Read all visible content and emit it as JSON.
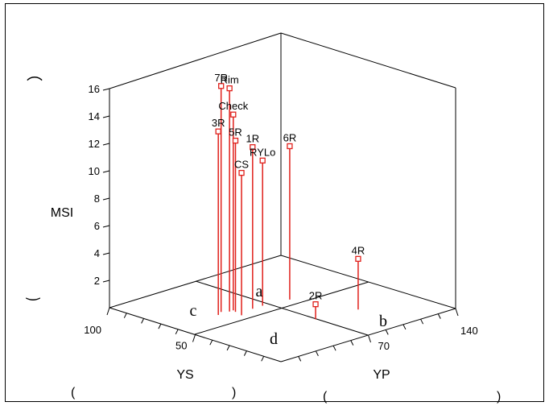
{
  "chart_data": {
    "type": "scatter",
    "subtype": "3d-scatter-with-drop-lines",
    "xlabel": "YP",
    "ylabel": "YS",
    "zlabel": "MSI",
    "x_axis": {
      "ticks": [
        "70",
        "140"
      ],
      "values": [
        70,
        140
      ],
      "range": [
        0,
        140
      ]
    },
    "y_axis": {
      "ticks": [
        "50",
        "100"
      ],
      "values": [
        50,
        100
      ],
      "range": [
        0,
        100
      ]
    },
    "z_axis": {
      "ticks": [
        "2",
        "4",
        "6",
        "8",
        "10",
        "12",
        "14",
        "16"
      ],
      "values": [
        2,
        4,
        6,
        8,
        10,
        12,
        14,
        16
      ],
      "range": [
        0,
        16
      ]
    },
    "series_color": "#e0201b",
    "points": [
      {
        "label": "7R",
        "yp": 40,
        "ys": 64,
        "msi": 16.5
      },
      {
        "label": "Rim",
        "yp": 44,
        "ys": 62,
        "msi": 16.3
      },
      {
        "label": "Check",
        "yp": 47,
        "ys": 62,
        "msi": 14.3
      },
      {
        "label": "3R",
        "yp": 35,
        "ys": 62,
        "msi": 13.4
      },
      {
        "label": "5R",
        "yp": 46,
        "ys": 60,
        "msi": 12.5
      },
      {
        "label": "1R",
        "yp": 57,
        "ys": 58,
        "msi": 11.8
      },
      {
        "label": "RYLo",
        "yp": 65,
        "ys": 58,
        "msi": 10.6
      },
      {
        "label": "CS",
        "yp": 44,
        "ys": 55,
        "msi": 10.4
      },
      {
        "label": "6R",
        "yp": 84,
        "ys": 56,
        "msi": 11.2
      },
      {
        "label": "4R",
        "yp": 99,
        "ys": 27,
        "msi": 3.7
      },
      {
        "label": "2R",
        "yp": 69,
        "ys": 30,
        "msi": 1.1
      }
    ],
    "floor_quadrant_labels": [
      "a",
      "b",
      "c",
      "d"
    ]
  },
  "page_marks": {
    "paren_open": "(",
    "paren_close": ")",
    "curve_mark_top": "⌒",
    "curve_mark_bottom": "‿"
  }
}
